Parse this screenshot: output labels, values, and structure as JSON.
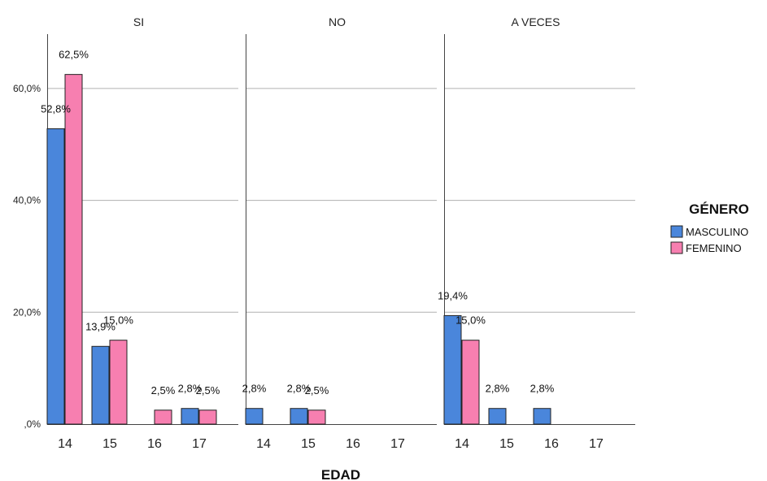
{
  "chart_data": {
    "type": "bar",
    "xlabel": "EDAD",
    "ylabel": "",
    "ylim": [
      0,
      70
    ],
    "y_ticks": [
      {
        "value": 0,
        "label": ",0%"
      },
      {
        "value": 20,
        "label": "20,0%"
      },
      {
        "value": 40,
        "label": "40,0%"
      },
      {
        "value": 60,
        "label": "60,0%"
      }
    ],
    "grid": true,
    "legend": {
      "title": "GÉNERO",
      "position": "right",
      "entries": [
        {
          "name": "MASCULINO",
          "color": "#4a86db"
        },
        {
          "name": "FEMENINO",
          "color": "#f77fb0"
        }
      ]
    },
    "categories": [
      "14",
      "15",
      "16",
      "17"
    ],
    "panels": [
      {
        "title": "SI",
        "series": [
          {
            "name": "MASCULINO",
            "values": [
              52.8,
              13.9,
              null,
              2.8
            ],
            "labels": [
              "52,8%",
              "13,9%",
              "",
              "2,8%"
            ]
          },
          {
            "name": "FEMENINO",
            "values": [
              62.5,
              15.0,
              2.5,
              2.5
            ],
            "labels": [
              "62,5%",
              "15,0%",
              "2,5%",
              "2,5%"
            ]
          }
        ]
      },
      {
        "title": "NO",
        "series": [
          {
            "name": "MASCULINO",
            "values": [
              2.8,
              2.8,
              null,
              null
            ],
            "labels": [
              "2,8%",
              "2,8%",
              "",
              ""
            ]
          },
          {
            "name": "FEMENINO",
            "values": [
              null,
              2.5,
              null,
              null
            ],
            "labels": [
              "",
              "2,5%",
              "",
              ""
            ]
          }
        ]
      },
      {
        "title": "A VECES",
        "series": [
          {
            "name": "MASCULINO",
            "values": [
              19.4,
              2.8,
              2.8,
              null
            ],
            "labels": [
              "19,4%",
              "2,8%",
              "2,8%",
              ""
            ]
          },
          {
            "name": "FEMENINO",
            "values": [
              15.0,
              null,
              null,
              null
            ],
            "labels": [
              "15,0%",
              "",
              "",
              ""
            ]
          }
        ]
      }
    ]
  }
}
